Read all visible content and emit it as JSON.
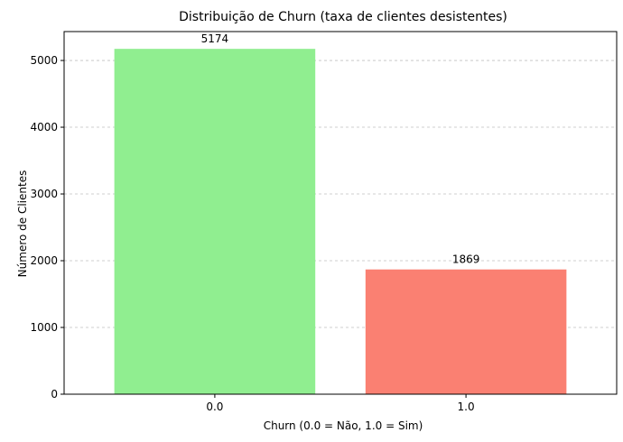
{
  "chart_data": {
    "type": "bar",
    "title": "Distribuição de Churn (taxa de clientes desistentes)",
    "xlabel": "Churn (0.0 = Não, 1.0 = Sim)",
    "ylabel": "Número de Clientes",
    "categories": [
      "0.0",
      "1.0"
    ],
    "values": [
      5174,
      1869
    ],
    "data_labels": [
      "5174",
      "1869"
    ],
    "colors": [
      "#90ee90",
      "#fa8072"
    ],
    "ylim": [
      0,
      5433
    ],
    "yticks": [
      0,
      1000,
      2000,
      3000,
      4000,
      5000
    ],
    "ytick_labels": [
      "0",
      "1000",
      "2000",
      "3000",
      "4000",
      "5000"
    ],
    "grid": "y-dashed",
    "grid_color": "#b0b0b0"
  }
}
